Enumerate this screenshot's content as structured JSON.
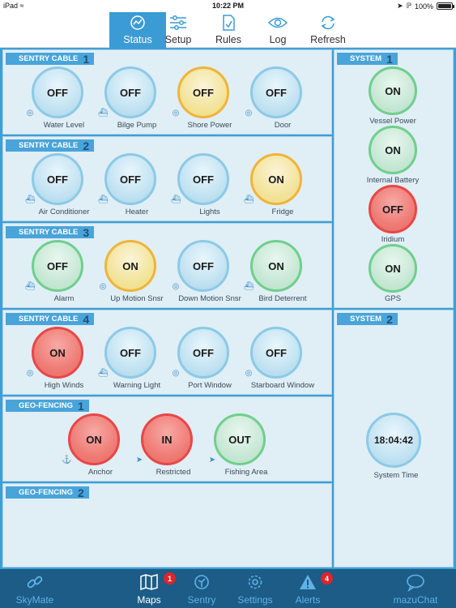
{
  "status_bar": {
    "device": "iPad",
    "time": "10:22 PM",
    "battery": "100%",
    "battery_level": 1.0
  },
  "top_tabs": [
    {
      "label": "Status",
      "icon": "status-gauge-icon",
      "active": true
    },
    {
      "label": "Setup",
      "icon": "sliders-icon",
      "active": false
    },
    {
      "label": "Rules",
      "icon": "rules-document-icon",
      "active": false
    },
    {
      "label": "Log",
      "icon": "eye-icon",
      "active": false
    },
    {
      "label": "Refresh",
      "icon": "refresh-icon",
      "active": false
    }
  ],
  "panels": [
    {
      "title": "SENTRY CABLE",
      "num": "1",
      "devices": [
        {
          "state": "OFF",
          "label": "Water Level",
          "icon": "signal-icon",
          "color": "off"
        },
        {
          "state": "OFF",
          "label": "Bilge Pump",
          "icon": "boat-icon",
          "color": "off"
        },
        {
          "state": "OFF",
          "label": "Shore Power",
          "icon": "signal-icon",
          "color": "yellow"
        },
        {
          "state": "OFF",
          "label": "Door",
          "icon": "signal-icon",
          "color": "off"
        }
      ]
    },
    {
      "title": "SENTRY CABLE",
      "num": "2",
      "devices": [
        {
          "state": "OFF",
          "label": "Air Conditioner",
          "icon": "boat-icon",
          "color": "off"
        },
        {
          "state": "OFF",
          "label": "Heater",
          "icon": "boat-icon",
          "color": "off"
        },
        {
          "state": "OFF",
          "label": "Lights",
          "icon": "boat-icon",
          "color": "off"
        },
        {
          "state": "ON",
          "label": "Fridge",
          "icon": "boat-icon",
          "color": "yellow"
        }
      ]
    },
    {
      "title": "SENTRY CABLE",
      "num": "3",
      "devices": [
        {
          "state": "OFF",
          "label": "Alarm",
          "icon": "boat-icon",
          "color": "green"
        },
        {
          "state": "ON",
          "label": "Up Motion Snsr",
          "icon": "signal-icon",
          "color": "yellow"
        },
        {
          "state": "OFF",
          "label": "Down Motion Snsr",
          "icon": "signal-icon",
          "color": "off"
        },
        {
          "state": "ON",
          "label": "Bird Deterrent",
          "icon": "boat-icon",
          "color": "green"
        }
      ]
    },
    {
      "title": "SENTRY CABLE",
      "num": "4",
      "devices": [
        {
          "state": "ON",
          "label": "High Winds",
          "icon": "signal-icon",
          "color": "red"
        },
        {
          "state": "OFF",
          "label": "Warning Light",
          "icon": "boat-icon",
          "color": "off"
        },
        {
          "state": "OFF",
          "label": "Port Window",
          "icon": "signal-icon",
          "color": "off"
        },
        {
          "state": "OFF",
          "label": "Starboard Window",
          "icon": "signal-icon",
          "color": "off"
        }
      ]
    },
    {
      "title": "GEO-FENCING",
      "num": "1",
      "devices": [
        {
          "state": "ON",
          "label": "Anchor",
          "icon": "anchor-icon",
          "color": "red"
        },
        {
          "state": "IN",
          "label": "Restricted",
          "icon": "location-arrow-icon",
          "color": "red"
        },
        {
          "state": "OUT",
          "label": "Fishing Area",
          "icon": "location-arrow-icon",
          "color": "green"
        }
      ]
    },
    {
      "title": "GEO-FENCING",
      "num": "2",
      "devices": []
    }
  ],
  "system": [
    {
      "title": "SYSTEM",
      "num": "1",
      "devices": [
        {
          "state": "ON",
          "label": "Vessel Power",
          "color": "green"
        },
        {
          "state": "ON",
          "label": "Internal Battery",
          "color": "green"
        },
        {
          "state": "OFF",
          "label": "Iridium",
          "color": "red"
        },
        {
          "state": "ON",
          "label": "GPS",
          "color": "green"
        }
      ]
    },
    {
      "title": "SYSTEM",
      "num": "2",
      "time_value": "18:04:42",
      "time_label": "System Time"
    }
  ],
  "bottom_tabs": [
    {
      "label": "SkyMate",
      "icon": "link-icon",
      "active": false,
      "badge": ""
    },
    {
      "label": "Maps",
      "icon": "map-icon",
      "active": true,
      "badge": "1"
    },
    {
      "label": "Sentry",
      "icon": "sentry-gauge-icon",
      "active": false,
      "badge": ""
    },
    {
      "label": "Settings",
      "icon": "gear-icon",
      "active": false,
      "badge": ""
    },
    {
      "label": "Alerts",
      "icon": "alert-icon",
      "active": false,
      "badge": "4"
    },
    {
      "label": "mazuChat",
      "icon": "chat-bubble-icon",
      "active": false,
      "badge": ""
    }
  ],
  "colors": {
    "accent": "#3a9bd5",
    "panel_bg": "#e0eef6",
    "off_border": "#8ccae6",
    "green_border": "#6fcf8c",
    "yellow_border": "#f0b43a",
    "red_border": "#e84747",
    "bottom_bar": "#1c5c86"
  }
}
